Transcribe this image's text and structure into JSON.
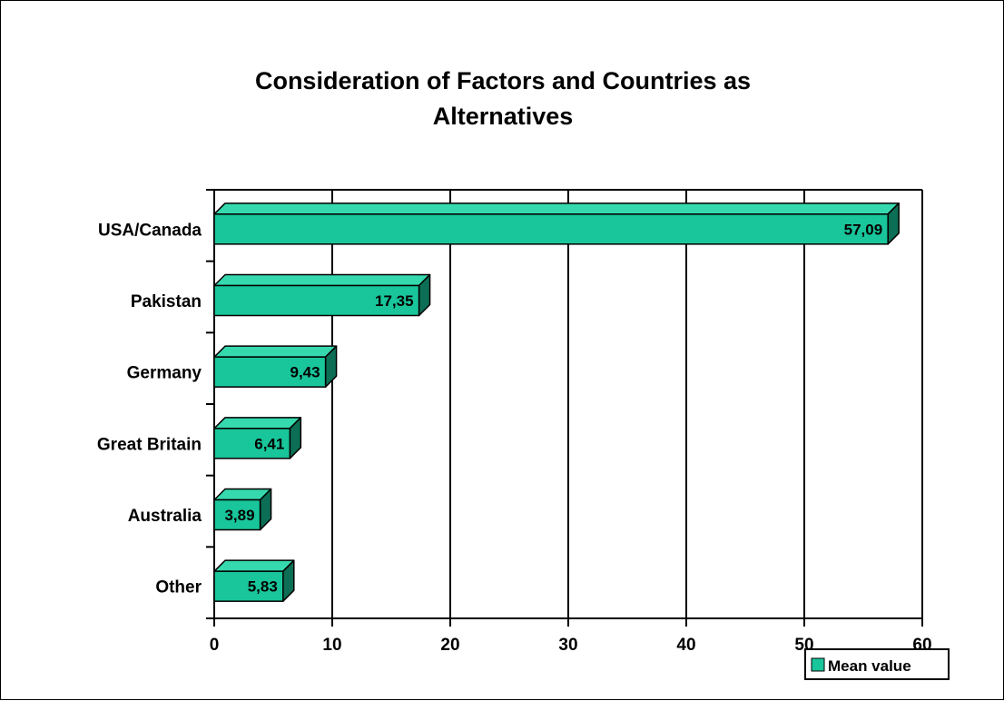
{
  "chart_data": {
    "type": "bar",
    "orientation": "horizontal",
    "title_lines": [
      "Consideration of Factors and Countries as",
      "Alternatives"
    ],
    "categories": [
      "USA/Canada",
      "Pakistan",
      "Germany",
      "Great Britain",
      "Australia",
      "Other"
    ],
    "series": [
      {
        "name": "Mean value",
        "values": [
          57.09,
          17.35,
          9.43,
          6.41,
          3.89,
          5.83
        ],
        "labels": [
          "57,09",
          "17,35",
          "9,43",
          "6,41",
          "3,89",
          "5,83"
        ]
      }
    ],
    "xlim": [
      0,
      60
    ],
    "xticks": [
      "0",
      "10",
      "20",
      "30",
      "40",
      "50",
      "60"
    ],
    "grid": "vertical",
    "legend_position": "bottom-right",
    "colors": {
      "bar_front": "#19c59a",
      "bar_top": "#36d9ad",
      "bar_side": "#0c6e55",
      "outline": "#000000"
    }
  }
}
